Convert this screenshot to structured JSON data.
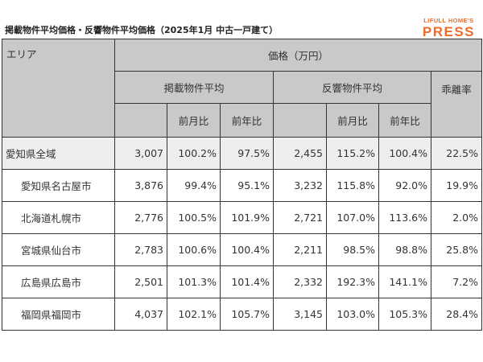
{
  "header": {
    "title": "掲載物件平均価格・反響物件平均価格（2025年1月 中古一戸建て）",
    "logo_top": "LIFULL HOME'S",
    "logo_bottom": "PRESS",
    "brand_color": "#ec6c2b"
  },
  "table": {
    "area_label": "エリア",
    "price_label": "価格（万円）",
    "listed_label": "掲載物件平均",
    "inquiry_label": "反響物件平均",
    "gap_label": "乖離率",
    "mom_label": "前月比",
    "yoy_label": "前年比",
    "rows": [
      {
        "area": "愛知県全域",
        "listed": "3,007",
        "listed_mom": "100.2%",
        "listed_yoy": "97.5%",
        "inquiry": "2,455",
        "inquiry_mom": "115.2%",
        "inquiry_yoy": "100.4%",
        "gap": "22.5%"
      },
      {
        "area": "愛知県名古屋市",
        "listed": "3,876",
        "listed_mom": "99.4%",
        "listed_yoy": "95.1%",
        "inquiry": "3,232",
        "inquiry_mom": "115.8%",
        "inquiry_yoy": "92.0%",
        "gap": "19.9%"
      },
      {
        "area": "北海道札幌市",
        "listed": "2,776",
        "listed_mom": "100.5%",
        "listed_yoy": "101.9%",
        "inquiry": "2,721",
        "inquiry_mom": "107.0%",
        "inquiry_yoy": "113.6%",
        "gap": "2.0%"
      },
      {
        "area": "宮城県仙台市",
        "listed": "2,783",
        "listed_mom": "100.6%",
        "listed_yoy": "100.4%",
        "inquiry": "2,211",
        "inquiry_mom": "98.5%",
        "inquiry_yoy": "98.8%",
        "gap": "25.8%"
      },
      {
        "area": "広島県広島市",
        "listed": "2,501",
        "listed_mom": "101.3%",
        "listed_yoy": "101.4%",
        "inquiry": "2,332",
        "inquiry_mom": "192.3%",
        "inquiry_yoy": "141.1%",
        "gap": "7.2%"
      },
      {
        "area": "福岡県福岡市",
        "listed": "4,037",
        "listed_mom": "102.1%",
        "listed_yoy": "105.7%",
        "inquiry": "3,145",
        "inquiry_mom": "103.0%",
        "inquiry_yoy": "105.3%",
        "gap": "28.4%"
      }
    ]
  }
}
